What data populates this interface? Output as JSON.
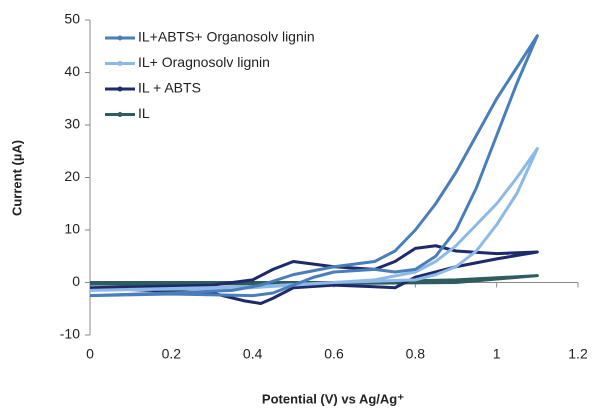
{
  "chart_data": {
    "type": "line",
    "xlabel": "Potential (V) vs Ag/Ag⁺",
    "ylabel": "Current (µA)",
    "xlim": [
      0,
      1.2
    ],
    "xticks": [
      0,
      0.2,
      0.4,
      0.6,
      0.8,
      1,
      1.2
    ],
    "ylim": [
      -10,
      50
    ],
    "yticks": [
      -10,
      0,
      10,
      20,
      30,
      40,
      50
    ],
    "grid": false,
    "legend": "upper left",
    "series": [
      {
        "name": "IL+ABTS+ Organosolv lignin",
        "color": "#4a7ebb",
        "x": [
          0,
          0.2,
          0.35,
          0.42,
          0.5,
          0.6,
          0.7,
          0.75,
          0.8,
          0.85,
          0.9,
          0.95,
          1.0,
          1.05,
          1.1,
          1.05,
          1.0,
          0.95,
          0.9,
          0.85,
          0.8,
          0.75,
          0.7,
          0.6,
          0.55,
          0.5,
          0.45,
          0.4,
          0.2,
          0
        ],
        "values": [
          -2.5,
          -2,
          -1.5,
          -0.5,
          1.5,
          3,
          4,
          6,
          10,
          15,
          21,
          28,
          35,
          41,
          47,
          38,
          28,
          18,
          10,
          5,
          2.5,
          2,
          2.5,
          2,
          1,
          -0.5,
          -2,
          -2.5,
          -2.2,
          -2.5
        ]
      },
      {
        "name": "IL+ Oragnosolv lignin",
        "color": "#8db9e8",
        "x": [
          0,
          0.4,
          0.6,
          0.7,
          0.8,
          0.85,
          0.9,
          0.95,
          1.0,
          1.05,
          1.1,
          1.05,
          1.0,
          0.95,
          0.9,
          0.85,
          0.8,
          0.6,
          0.4,
          0
        ],
        "values": [
          -1.5,
          -1,
          0,
          0.5,
          2,
          4,
          7,
          11,
          15,
          20,
          25.5,
          17,
          11,
          6,
          3,
          1.5,
          0.5,
          0,
          -0.8,
          -1.5
        ]
      },
      {
        "name": "IL + ABTS",
        "color": "#1f2a6b",
        "x": [
          0,
          0.3,
          0.4,
          0.45,
          0.5,
          0.55,
          0.6,
          0.7,
          0.75,
          0.8,
          0.85,
          0.9,
          1.0,
          1.1,
          1.0,
          0.9,
          0.8,
          0.75,
          0.7,
          0.6,
          0.5,
          0.45,
          0.42,
          0.38,
          0.3,
          0
        ],
        "values": [
          -1,
          -0.5,
          0.5,
          2.5,
          4,
          3.5,
          3,
          2.5,
          4,
          6.5,
          7,
          6,
          5.5,
          5.8,
          4.5,
          3,
          1,
          -1,
          -0.8,
          -0.5,
          -1,
          -3,
          -4,
          -3.5,
          -2,
          -1
        ]
      },
      {
        "name": "IL",
        "color": "#2f5c5e",
        "x": [
          0,
          0.6,
          0.9,
          1.1,
          0.9,
          0.6,
          0
        ],
        "values": [
          0,
          0,
          0.5,
          1.3,
          0,
          -0.2,
          -0.3
        ]
      }
    ]
  }
}
